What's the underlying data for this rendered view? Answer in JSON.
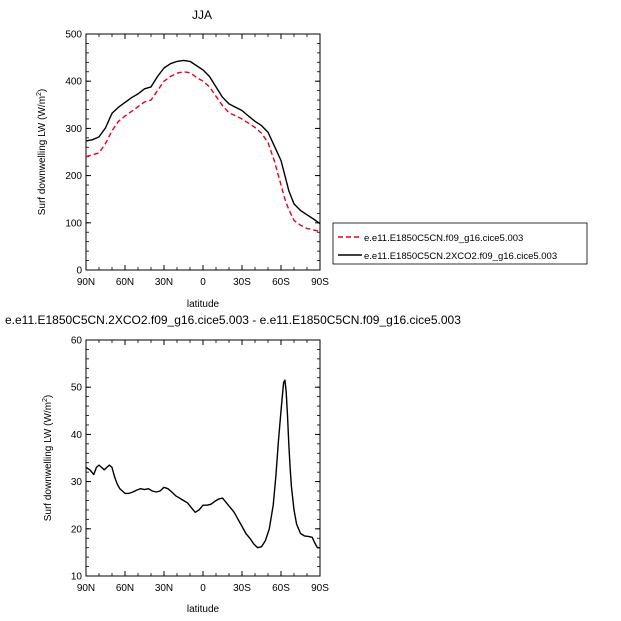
{
  "chart_data": [
    {
      "type": "line",
      "title": "JJA",
      "xlabel": "latitude",
      "ylabel": "Surf downwelling LW (W/m²)",
      "ylabel_main": "Surf downwelling LW (W/m",
      "ylabel_sup": "2",
      "ylabel_close": ")",
      "xlim": [
        90,
        -90
      ],
      "ylim": [
        0,
        500
      ],
      "x_ticks": [
        {
          "value": 90,
          "label": "90N"
        },
        {
          "value": 60,
          "label": "60N"
        },
        {
          "value": 30,
          "label": "30N"
        },
        {
          "value": 0,
          "label": "0"
        },
        {
          "value": -30,
          "label": "30S"
        },
        {
          "value": -60,
          "label": "60S"
        },
        {
          "value": -90,
          "label": "90S"
        }
      ],
      "y_ticks": [
        {
          "value": 0,
          "label": "0"
        },
        {
          "value": 100,
          "label": "100"
        },
        {
          "value": 200,
          "label": "200"
        },
        {
          "value": 300,
          "label": "300"
        },
        {
          "value": 400,
          "label": "400"
        },
        {
          "value": 500,
          "label": "500"
        }
      ],
      "legend_position": "right",
      "series": [
        {
          "name": "e.e11.E1850C5CN.f09_g16.cice5.003",
          "color": "#e8001a",
          "style": "dashed",
          "x": [
            90,
            85,
            80,
            75,
            70,
            65,
            60,
            55,
            50,
            45,
            40,
            35,
            30,
            25,
            20,
            15,
            10,
            5,
            0,
            -5,
            -10,
            -15,
            -20,
            -25,
            -30,
            -35,
            -40,
            -45,
            -50,
            -55,
            -60,
            -63,
            -66,
            -70,
            -75,
            -80,
            -85,
            -90
          ],
          "values": [
            240,
            244,
            248,
            268,
            295,
            315,
            326,
            336,
            346,
            356,
            360,
            380,
            400,
            410,
            417,
            420,
            418,
            408,
            400,
            388,
            368,
            348,
            333,
            327,
            320,
            311,
            302,
            290,
            270,
            230,
            180,
            150,
            128,
            105,
            95,
            88,
            85,
            82
          ]
        },
        {
          "name": "e.e11.E1850C5CN.2XCO2.f09_g16.cice5.003",
          "color": "#000000",
          "style": "solid",
          "x": [
            90,
            85,
            80,
            75,
            70,
            65,
            60,
            55,
            50,
            45,
            40,
            35,
            30,
            25,
            20,
            15,
            10,
            5,
            0,
            -5,
            -10,
            -15,
            -20,
            -25,
            -30,
            -35,
            -40,
            -45,
            -50,
            -55,
            -60,
            -63,
            -66,
            -70,
            -75,
            -80,
            -85,
            -90
          ],
          "values": [
            273,
            276,
            282,
            301,
            332,
            345,
            355,
            365,
            373,
            384,
            388,
            410,
            428,
            437,
            442,
            444,
            442,
            433,
            424,
            410,
            388,
            366,
            352,
            345,
            338,
            326,
            315,
            306,
            292,
            262,
            232,
            200,
            168,
            140,
            126,
            117,
            108,
            98
          ]
        }
      ]
    },
    {
      "type": "line",
      "title": "e.e11.E1850C5CN.2XCO2.f09_g16.cice5.003 - e.e11.E1850C5CN.f09_g16.cice5.003",
      "xlabel": "latitude",
      "ylabel": "Surf downwelling LW (W/m²)",
      "ylabel_main": "Surf downwelling LW (W/m",
      "ylabel_sup": "2",
      "ylabel_close": ")",
      "xlim": [
        90,
        -90
      ],
      "ylim": [
        10,
        60
      ],
      "x_ticks": [
        {
          "value": 90,
          "label": "90N"
        },
        {
          "value": 60,
          "label": "60N"
        },
        {
          "value": 30,
          "label": "30N"
        },
        {
          "value": 0,
          "label": "0"
        },
        {
          "value": -30,
          "label": "30S"
        },
        {
          "value": -60,
          "label": "60S"
        },
        {
          "value": -90,
          "label": "90S"
        }
      ],
      "y_ticks": [
        {
          "value": 10,
          "label": "10"
        },
        {
          "value": 20,
          "label": "20"
        },
        {
          "value": 30,
          "label": "30"
        },
        {
          "value": 40,
          "label": "40"
        },
        {
          "value": 50,
          "label": "50"
        },
        {
          "value": 60,
          "label": "60"
        }
      ],
      "series": [
        {
          "color": "#000000",
          "style": "solid",
          "x": [
            90,
            87,
            84,
            82,
            80,
            78,
            76,
            74,
            72,
            70,
            68,
            66,
            64,
            62,
            60,
            57,
            54,
            51,
            48,
            45,
            42,
            39,
            36,
            33,
            30,
            27,
            24,
            21,
            18,
            15,
            12,
            9,
            6,
            3,
            0,
            -3,
            -6,
            -9,
            -12,
            -15,
            -18,
            -21,
            -24,
            -27,
            -30,
            -33,
            -36,
            -39,
            -42,
            -45,
            -48,
            -51,
            -54,
            -56,
            -58,
            -60,
            -61,
            -62,
            -63,
            -64,
            -65,
            -66,
            -67,
            -68,
            -70,
            -72,
            -75,
            -78,
            -81,
            -84,
            -86,
            -88,
            -90
          ],
          "values": [
            33,
            32.5,
            31.5,
            33,
            33.5,
            33,
            32.5,
            33,
            33.5,
            33,
            31,
            29.5,
            28.5,
            28,
            27.5,
            27.5,
            27.8,
            28.2,
            28.5,
            28.3,
            28.5,
            28,
            27.8,
            28,
            28.8,
            28.5,
            27.8,
            27,
            26.5,
            26,
            25.5,
            24.5,
            23.5,
            24,
            25,
            25,
            25.2,
            25.8,
            26.3,
            26.5,
            25.5,
            24.5,
            23.5,
            22,
            20.5,
            19,
            18,
            16.8,
            16,
            16.2,
            17.5,
            20,
            25,
            31,
            38.5,
            45,
            48,
            51,
            51.5,
            49,
            44,
            38,
            33,
            29,
            24,
            21,
            19,
            18.5,
            18.4,
            18.2,
            17,
            16,
            16
          ]
        }
      ]
    }
  ]
}
